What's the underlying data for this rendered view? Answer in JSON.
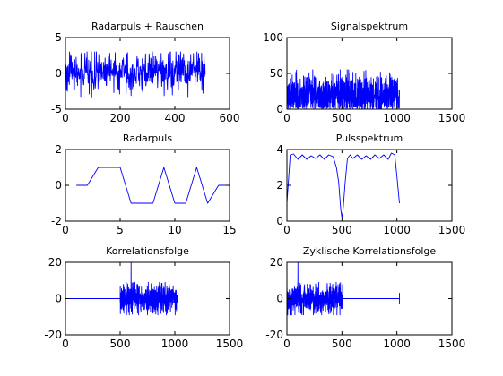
{
  "figure": {
    "background": "#ffffff"
  },
  "chart_data": [
    {
      "id": "p1",
      "type": "line",
      "title": "Radarpuls + Rauschen",
      "xlim": [
        0,
        600
      ],
      "ylim": [
        -5,
        5
      ],
      "xticks": [
        0,
        200,
        400,
        600
      ],
      "yticks": [
        -5,
        0,
        5
      ],
      "line_color": "#0000ff",
      "series": [
        {
          "kind": "noise",
          "x_start": 0,
          "x_end": 511,
          "n": 512,
          "center": 0.2,
          "amplitude": 1.2,
          "peak": 3.0,
          "trough": -3.3
        }
      ]
    },
    {
      "id": "p2",
      "type": "line",
      "title": "Signalspektrum",
      "xlim": [
        0,
        1500
      ],
      "ylim": [
        0,
        100
      ],
      "xticks": [
        0,
        500,
        1000,
        1500
      ],
      "yticks": [
        0,
        50,
        100
      ],
      "line_color": "#0000ff",
      "series": [
        {
          "kind": "noise_positive",
          "x_start": 0,
          "x_end": 1023,
          "n": 1024,
          "center": 20,
          "amplitude": 14,
          "peak": 55,
          "trough": 0
        }
      ]
    },
    {
      "id": "p3",
      "type": "line",
      "title": "Radarpuls",
      "xlim": [
        0,
        15
      ],
      "ylim": [
        -2,
        2
      ],
      "xticks": [
        0,
        5,
        10,
        15
      ],
      "yticks": [
        -2,
        0,
        2
      ],
      "line_color": "#0000ff",
      "series": [
        {
          "kind": "points",
          "x": [
            1,
            2,
            3,
            4,
            5,
            6,
            7,
            8,
            9,
            10,
            11,
            12,
            13,
            14,
            15
          ],
          "y": [
            0,
            0,
            1,
            1,
            1,
            -1,
            -1,
            -1,
            1,
            -1,
            -1,
            1,
            -1,
            0,
            0
          ]
        }
      ]
    },
    {
      "id": "p4",
      "type": "line",
      "title": "Pulsspektrum",
      "xlim": [
        0,
        1500
      ],
      "ylim": [
        0,
        4
      ],
      "xticks": [
        0,
        500,
        1000,
        1500
      ],
      "yticks": [
        0,
        2,
        4
      ],
      "line_color": "#0000ff",
      "series": [
        {
          "kind": "points",
          "x": [
            0,
            30,
            60,
            100,
            140,
            180,
            220,
            260,
            300,
            340,
            380,
            420,
            450,
            470,
            490,
            500,
            510,
            530,
            550,
            575,
            600,
            640,
            680,
            720,
            760,
            800,
            840,
            880,
            920,
            950,
            980,
            1000,
            1023
          ],
          "y": [
            1.0,
            3.7,
            3.75,
            3.45,
            3.7,
            3.45,
            3.65,
            3.5,
            3.7,
            3.45,
            3.7,
            3.6,
            3.0,
            2.2,
            0.6,
            0.2,
            0.6,
            2.2,
            3.5,
            3.7,
            3.5,
            3.7,
            3.45,
            3.65,
            3.45,
            3.7,
            3.5,
            3.7,
            3.45,
            3.8,
            3.7,
            2.5,
            1.0
          ]
        }
      ]
    },
    {
      "id": "p5",
      "type": "line",
      "title": "Korrelationsfolge",
      "xlim": [
        0,
        1500
      ],
      "ylim": [
        -20,
        20
      ],
      "xticks": [
        0,
        500,
        1000,
        1500
      ],
      "yticks": [
        -20,
        0,
        20
      ],
      "line_color": "#0000ff",
      "series": [
        {
          "kind": "flat",
          "x_start": 0,
          "x_end": 500,
          "value": 0
        },
        {
          "kind": "noise",
          "x_start": 500,
          "x_end": 1023,
          "n": 524,
          "center": 0,
          "amplitude": 4,
          "peak": 9,
          "trough": -9,
          "spike_x": 600,
          "spike_y": 20
        }
      ]
    },
    {
      "id": "p6",
      "type": "line",
      "title": "Zyklische Korrelationsfolge",
      "xlim": [
        0,
        1500
      ],
      "ylim": [
        -20,
        20
      ],
      "xticks": [
        0,
        500,
        1000,
        1500
      ],
      "yticks": [
        -20,
        0,
        20
      ],
      "line_color": "#0000ff",
      "series": [
        {
          "kind": "noise",
          "x_start": 0,
          "x_end": 511,
          "n": 512,
          "center": 0,
          "amplitude": 4,
          "peak": 9,
          "trough": -9,
          "spike_x": 100,
          "spike_y": 20
        },
        {
          "kind": "flat",
          "x_start": 511,
          "x_end": 1023,
          "value": 0,
          "end_blip": 3
        }
      ]
    }
  ]
}
